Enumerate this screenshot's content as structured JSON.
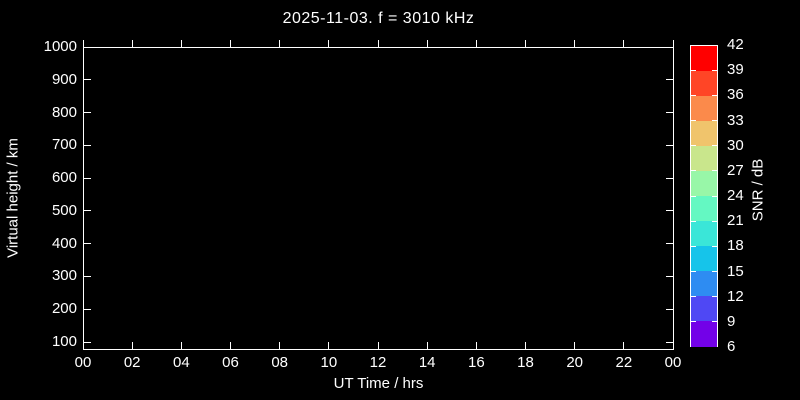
{
  "title": "2025-11-03. f = 3010 kHz",
  "colors": {
    "background": "#000000",
    "foreground": "#ffffff"
  },
  "axes": {
    "x": {
      "label": "UT Time / hrs",
      "ticks": [
        "00",
        "02",
        "04",
        "06",
        "08",
        "10",
        "12",
        "14",
        "16",
        "18",
        "20",
        "22",
        "00"
      ]
    },
    "y": {
      "label": "Virtual height / km",
      "ticks": [
        "100",
        "200",
        "300",
        "400",
        "500",
        "600",
        "700",
        "800",
        "900",
        "1000"
      ]
    }
  },
  "colorbar": {
    "label": "SNR / dB",
    "tick_labels": [
      "42",
      "39",
      "36",
      "33",
      "30",
      "27",
      "24",
      "21",
      "18",
      "15",
      "12",
      "9",
      "6"
    ],
    "segments": [
      {
        "from": 39,
        "to": 42,
        "color": "#ff0000"
      },
      {
        "from": 36,
        "to": 39,
        "color": "#ff4526"
      },
      {
        "from": 33,
        "to": 36,
        "color": "#fb8a4b"
      },
      {
        "from": 30,
        "to": 33,
        "color": "#f0c46c"
      },
      {
        "from": 27,
        "to": 30,
        "color": "#c9e68c"
      },
      {
        "from": 24,
        "to": 27,
        "color": "#98f7a8"
      },
      {
        "from": 21,
        "to": 24,
        "color": "#64f8c2"
      },
      {
        "from": 18,
        "to": 21,
        "color": "#3ae6d8"
      },
      {
        "from": 15,
        "to": 18,
        "color": "#16c4ea"
      },
      {
        "from": 12,
        "to": 15,
        "color": "#2e8cf2"
      },
      {
        "from": 9,
        "to": 12,
        "color": "#4f48f4"
      },
      {
        "from": 6,
        "to": 9,
        "color": "#7301e8"
      }
    ]
  },
  "chart_data": {
    "type": "heatmap",
    "title": "2025-11-03. f = 3010 kHz",
    "xlabel": "UT Time / hrs",
    "ylabel": "Virtual height / km",
    "xlim": [
      0,
      24
    ],
    "ylim": [
      80,
      1000
    ],
    "x_tick_labels": [
      "00",
      "02",
      "04",
      "06",
      "08",
      "10",
      "12",
      "14",
      "16",
      "18",
      "20",
      "22",
      "00"
    ],
    "y_tick_values": [
      100,
      200,
      300,
      400,
      500,
      600,
      700,
      800,
      900,
      1000
    ],
    "colorbar": {
      "label": "SNR / dB",
      "min": 6,
      "max": 42,
      "step": 3
    },
    "grid": false,
    "background": "#000000",
    "points": []
  }
}
